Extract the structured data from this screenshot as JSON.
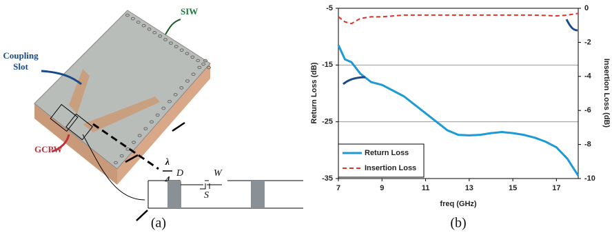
{
  "chart_data": {
    "type": "line",
    "x": [
      7,
      7.3,
      7.6,
      8,
      8.5,
      9,
      9.5,
      10,
      10.5,
      11,
      11.5,
      12,
      12.5,
      13,
      13.5,
      14,
      14.5,
      15,
      15.5,
      16,
      16.5,
      17,
      17.5,
      18
    ],
    "series": [
      {
        "name": "Return Loss",
        "color": "#1b9ad6",
        "dash": false,
        "values": [
          -11.5,
          -14,
          -14.5,
          -16.5,
          -18,
          -18.5,
          -19.5,
          -20.5,
          -22,
          -23.5,
          -25,
          -26.5,
          -27.3,
          -27.4,
          -27.3,
          -27,
          -26.8,
          -27,
          -27.3,
          -27.8,
          -28.5,
          -29.5,
          -31.5,
          -34.5
        ]
      },
      {
        "name": "Insertion Loss",
        "color": "#e0302a",
        "dash": true,
        "axis": "y2",
        "values": [
          -0.5,
          -0.8,
          -0.9,
          -0.6,
          -0.5,
          -0.5,
          -0.45,
          -0.4,
          -0.4,
          -0.4,
          -0.4,
          -0.4,
          -0.4,
          -0.4,
          -0.4,
          -0.4,
          -0.4,
          -0.4,
          -0.4,
          -0.4,
          -0.42,
          -0.45,
          -0.4,
          -0.3
        ]
      }
    ],
    "xlabel": "freq (GHz)",
    "ylabel": "Return Loss (dB)",
    "y2label": "Insertion Loss (dB)",
    "xlim": [
      7,
      18
    ],
    "xticks": [
      7,
      9,
      11,
      13,
      15,
      17
    ],
    "ylim": [
      -35,
      -5
    ],
    "yticks": [
      -5,
      -15,
      -25,
      -35
    ],
    "y2lim": [
      -10,
      0
    ],
    "y2ticks": [
      0,
      -2,
      -4,
      -6,
      -8,
      -10
    ],
    "grid": true,
    "legend": "lower left"
  },
  "diagram": {
    "siw": "SIW",
    "coupling_slot": [
      "Coupling",
      "Slot"
    ],
    "gcpw": "GCPW",
    "fraction": {
      "numerator": "λ",
      "denominator": "4"
    },
    "dimensions": {
      "d": "D",
      "w": "W",
      "s": "S"
    }
  },
  "captions": [
    "(a)",
    "(b)"
  ]
}
